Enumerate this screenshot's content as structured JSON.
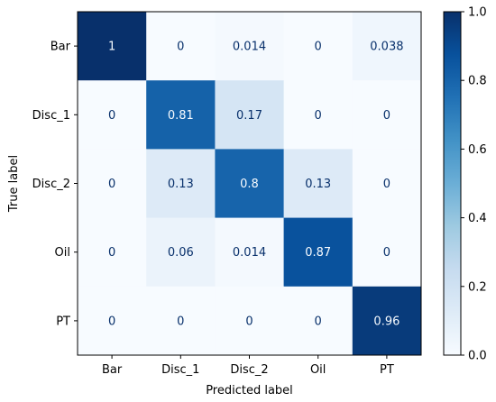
{
  "chart_data": {
    "type": "heatmap",
    "title": "",
    "xlabel": "Predicted label",
    "ylabel": "True label",
    "x_categories": [
      "Bar",
      "Disc_1",
      "Disc_2",
      "Oil",
      "PT"
    ],
    "y_categories": [
      "Bar",
      "Disc_1",
      "Disc_2",
      "Oil",
      "PT"
    ],
    "values": [
      [
        1,
        0,
        0.014,
        0,
        0.038
      ],
      [
        0,
        0.81,
        0.17,
        0,
        0
      ],
      [
        0,
        0.13,
        0.8,
        0.13,
        0
      ],
      [
        0,
        0.06,
        0.014,
        0.87,
        0
      ],
      [
        0,
        0,
        0,
        0,
        0.96
      ]
    ],
    "value_labels": [
      [
        "1",
        "0",
        "0.014",
        "0",
        "0.038"
      ],
      [
        "0",
        "0.81",
        "0.17",
        "0",
        "0"
      ],
      [
        "0",
        "0.13",
        "0.8",
        "0.13",
        "0"
      ],
      [
        "0",
        "0.06",
        "0.014",
        "0.87",
        "0"
      ],
      [
        "0",
        "0",
        "0",
        "0",
        "0.96"
      ]
    ],
    "colormap": "Blues",
    "colorbar": {
      "range": [
        0,
        1
      ],
      "ticks": [
        0.0,
        0.2,
        0.4,
        0.6,
        0.8,
        1.0
      ],
      "tick_labels": [
        "0.0",
        "0.2",
        "0.4",
        "0.6",
        "0.8",
        "1.0"
      ]
    },
    "grid": false,
    "legend": "colorbar-right"
  }
}
